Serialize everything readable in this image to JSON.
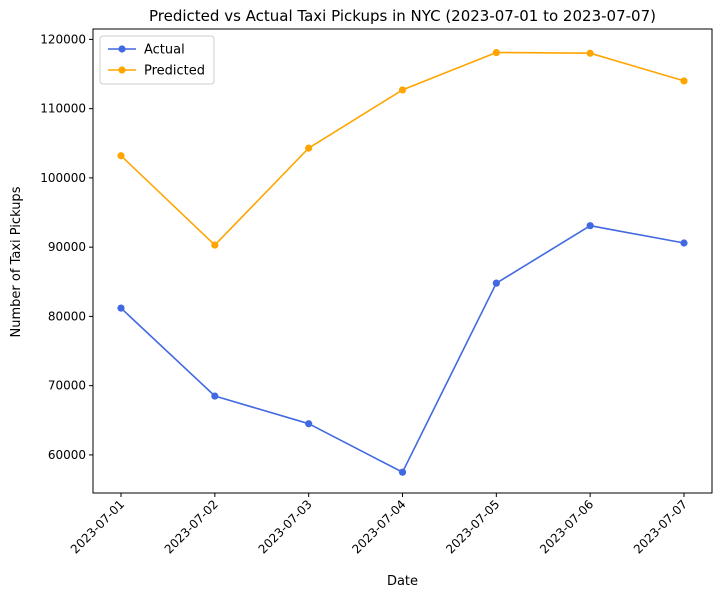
{
  "chart_data": {
    "type": "line",
    "title": "Predicted vs Actual Taxi Pickups in NYC (2023-07-01 to 2023-07-07)",
    "xlabel": "Date",
    "ylabel": "Number of Taxi Pickups",
    "categories": [
      "2023-07-01",
      "2023-07-02",
      "2023-07-03",
      "2023-07-04",
      "2023-07-05",
      "2023-07-06",
      "2023-07-07"
    ],
    "y_ticks": [
      60000,
      70000,
      80000,
      90000,
      100000,
      110000,
      120000
    ],
    "ylim": [
      54500,
      121500
    ],
    "series": [
      {
        "name": "Actual",
        "color": "#4169e1",
        "values": [
          81200,
          68500,
          64500,
          57500,
          84800,
          93100,
          90600
        ]
      },
      {
        "name": "Predicted",
        "color": "#ffa500",
        "values": [
          103200,
          90300,
          104300,
          112700,
          118100,
          118000,
          114000
        ]
      }
    ],
    "legend": "top-left",
    "grid": false,
    "x_tick_rotation": 45
  }
}
